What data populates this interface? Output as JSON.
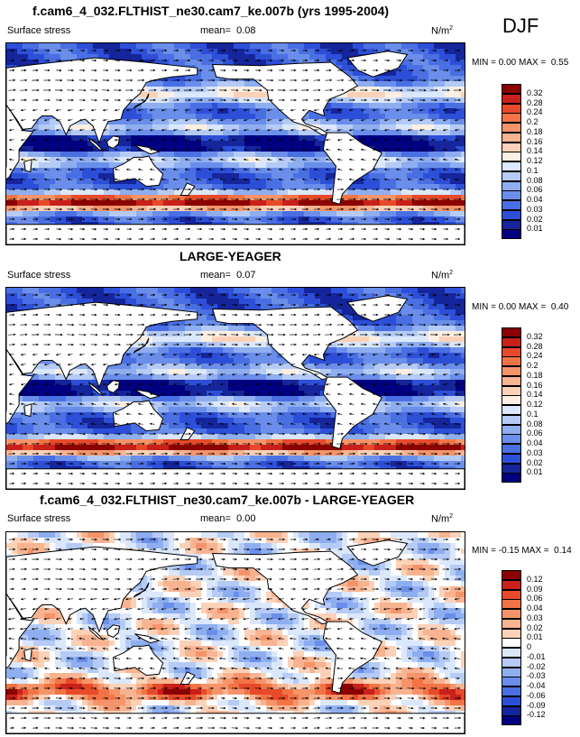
{
  "season": "DJF",
  "panels": [
    {
      "title": "f.cam6_4_032.FLTHIST_ne30.cam7_ke.007b (yrs 1995-2004)",
      "variable": "Surface stress",
      "mean_label": "mean=",
      "mean_value": "0.08",
      "units": "N/m",
      "units_sup": "2",
      "min_label": "MIN =",
      "min_value": "0.00",
      "max_label": "MAX =",
      "max_value": "0.55",
      "mode": "abs"
    },
    {
      "title": "LARGE-YEAGER",
      "variable": "Surface stress",
      "mean_label": "mean=",
      "mean_value": "0.07",
      "units": "N/m",
      "units_sup": "2",
      "min_label": "MIN =",
      "min_value": "0.00",
      "max_label": "MAX =",
      "max_value": "0.40",
      "mode": "abs"
    },
    {
      "title": "f.cam6_4_032.FLTHIST_ne30.cam7_ke.007b - LARGE-YEAGER",
      "variable": "Surface stress",
      "mean_label": "mean=",
      "mean_value": "0.00",
      "units": "N/m",
      "units_sup": "2",
      "min_label": "MIN =",
      "min_value": "-0.15",
      "max_label": "MAX =",
      "max_value": "0.14",
      "mode": "diff"
    }
  ],
  "chart_data": [
    {
      "type": "heatmap",
      "colorbar": {
        "levels": [
          "0.32",
          "0.28",
          "0.24",
          "0.2",
          "0.18",
          "0.16",
          "0.14",
          "0.12",
          "0.1",
          "0.08",
          "0.06",
          "0.04",
          "0.03",
          "0.02",
          "0.01"
        ],
        "colors": [
          "#8b0000",
          "#c8201a",
          "#e64a2a",
          "#f27446",
          "#f5946a",
          "#f8b391",
          "#fbd2b8",
          "#fdf0e3",
          "#dbe7fb",
          "#b5cbf6",
          "#8eaef0",
          "#6a8eea",
          "#4a6fe3",
          "#2d4fd8",
          "#15259b",
          "#000080"
        ]
      }
    },
    {
      "type": "heatmap",
      "colorbar": {
        "levels": [
          "0.32",
          "0.28",
          "0.24",
          "0.2",
          "0.18",
          "0.16",
          "0.14",
          "0.12",
          "0.1",
          "0.08",
          "0.06",
          "0.04",
          "0.03",
          "0.02",
          "0.01"
        ],
        "colors": [
          "#8b0000",
          "#c8201a",
          "#e64a2a",
          "#f27446",
          "#f5946a",
          "#f8b391",
          "#fbd2b8",
          "#fdf0e3",
          "#dbe7fb",
          "#b5cbf6",
          "#8eaef0",
          "#6a8eea",
          "#4a6fe3",
          "#2d4fd8",
          "#15259b",
          "#000080"
        ]
      }
    },
    {
      "type": "heatmap",
      "colorbar": {
        "levels": [
          "0.12",
          "0.09",
          "0.06",
          "0.04",
          "0.03",
          "0.02",
          "0.01",
          "0",
          "-0.01",
          "-0.02",
          "-0.03",
          "-0.04",
          "-0.06",
          "-0.09",
          "-0.12"
        ],
        "colors": [
          "#8b0000",
          "#c8201a",
          "#e64a2a",
          "#f27446",
          "#f5946a",
          "#f8b391",
          "#fbd2b8",
          "#ffffff",
          "#dbe7fb",
          "#b5cbf6",
          "#8eaef0",
          "#6a8eea",
          "#4a6fe3",
          "#2d4fd8",
          "#15259b",
          "#000080"
        ]
      }
    }
  ]
}
